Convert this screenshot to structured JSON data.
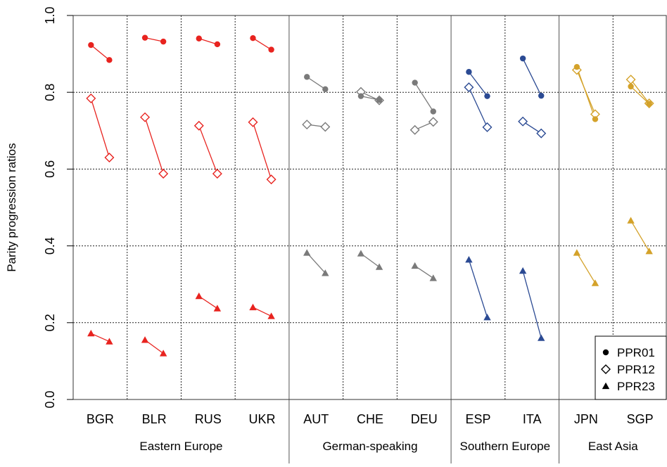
{
  "chart_data": {
    "type": "scatter",
    "title": "",
    "xlabel": "",
    "ylabel": "Parity progression ratios",
    "ylim": [
      0,
      1
    ],
    "yticks": [
      "0.0",
      "0.2",
      "0.4",
      "0.6",
      "0.8",
      "1.0"
    ],
    "grid": true,
    "legend_position": "bottom-right",
    "legend": [
      {
        "key": "ppr01",
        "label": "PPR01",
        "marker": "filled-circle"
      },
      {
        "key": "ppr12",
        "label": "PPR12",
        "marker": "open-diamond"
      },
      {
        "key": "ppr23",
        "label": "PPR23",
        "marker": "filled-triangle"
      }
    ],
    "groups": [
      {
        "name": "Eastern Europe",
        "color": "#e8231f",
        "countries": [
          "BGR",
          "BLR",
          "RUS",
          "UKR"
        ]
      },
      {
        "name": "German-speaking",
        "color": "#7a7a7a",
        "countries": [
          "AUT",
          "CHE",
          "DEU"
        ]
      },
      {
        "name": "Southern Europe",
        "color": "#2b4a93",
        "countries": [
          "ESP",
          "ITA"
        ]
      },
      {
        "name": "East Asia",
        "color": "#d4a22a",
        "countries": [
          "JPN",
          "SGP"
        ]
      }
    ],
    "countries": [
      {
        "code": "BGR",
        "ppr01": [
          0.923,
          0.884
        ],
        "ppr12": [
          0.784,
          0.63
        ],
        "ppr23": [
          0.172,
          0.151
        ]
      },
      {
        "code": "BLR",
        "ppr01": [
          0.942,
          0.932
        ],
        "ppr12": [
          0.735,
          0.588
        ],
        "ppr23": [
          0.155,
          0.12
        ]
      },
      {
        "code": "RUS",
        "ppr01": [
          0.94,
          0.925
        ],
        "ppr12": [
          0.713,
          0.588
        ],
        "ppr23": [
          0.269,
          0.237
        ]
      },
      {
        "code": "UKR",
        "ppr01": [
          0.941,
          0.911
        ],
        "ppr12": [
          0.722,
          0.573
        ],
        "ppr23": [
          0.24,
          0.217
        ]
      },
      {
        "code": "AUT",
        "ppr01": [
          0.84,
          0.808
        ],
        "ppr12": [
          0.716,
          0.71
        ],
        "ppr23": [
          0.382,
          0.329
        ]
      },
      {
        "code": "CHE",
        "ppr01": [
          0.79,
          0.78
        ],
        "ppr12": [
          0.801,
          0.779
        ],
        "ppr23": [
          0.38,
          0.345
        ]
      },
      {
        "code": "DEU",
        "ppr01": [
          0.825,
          0.75
        ],
        "ppr12": [
          0.702,
          0.723
        ],
        "ppr23": [
          0.348,
          0.316
        ]
      },
      {
        "code": "ESP",
        "ppr01": [
          0.853,
          0.79
        ],
        "ppr12": [
          0.813,
          0.709
        ],
        "ppr23": [
          0.364,
          0.214
        ]
      },
      {
        "code": "ITA",
        "ppr01": [
          0.888,
          0.791
        ],
        "ppr12": [
          0.724,
          0.693
        ],
        "ppr23": [
          0.335,
          0.16
        ]
      },
      {
        "code": "JPN",
        "ppr01": [
          0.866,
          0.73
        ],
        "ppr12": [
          0.858,
          0.743
        ],
        "ppr23": [
          0.382,
          0.303
        ]
      },
      {
        "code": "SGP",
        "ppr01": [
          0.815,
          0.77
        ],
        "ppr12": [
          0.833,
          0.771
        ],
        "ppr23": [
          0.466,
          0.386
        ]
      }
    ]
  }
}
